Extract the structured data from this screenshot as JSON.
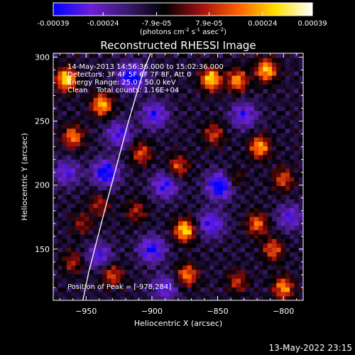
{
  "chart_data": {
    "type": "heatmap",
    "title": "Reconstructed RHESSI Image",
    "xlabel": "Heliocentric X (arcsec)",
    "ylabel": "Heliocentric Y (arcsec)",
    "xlim": [
      -975,
      -785
    ],
    "ylim": [
      110,
      303
    ],
    "xticks": [
      -950,
      -900,
      -850,
      -800
    ],
    "yticks": [
      150,
      200,
      250,
      300
    ],
    "colorbar": {
      "label_html": "(photons cm<tspan baseline-shift=\"super\" font-size=\"7\">-2</tspan> s<tspan baseline-shift=\"super\" font-size=\"7\">-1</tspan> asec<tspan baseline-shift=\"super\" font-size=\"7\">-2</tspan>)",
      "range": [
        -0.00039,
        0.00039
      ],
      "ticks": [
        -0.00039,
        -0.00024,
        -7.9e-05,
        7.9e-05,
        0.00024,
        0.00039
      ],
      "tick_labels": [
        "-0.00039",
        "-0.00024",
        "-7.9e-05",
        "7.9e-05",
        "0.00024",
        "0.00039"
      ],
      "colormap_stops": [
        "#0000ff",
        "#6b1fd6",
        "#3a1a70",
        "#000000",
        "#a01010",
        "#ff6000",
        "#ffe000",
        "#ffffff"
      ]
    },
    "annotations": [
      "14-May-2013 14:56:36.000 to 15:02:36.000",
      "Detectors: 3F 4F 5F 6F 7F 8F, Att 0",
      "Energy Range: 25.0 - 50.0 keV",
      "Clean    Total counts: 1.16E+04"
    ],
    "peak_label": "Position of Peak = [-978,284]",
    "limb_curve": {
      "x": [
        -952.5,
        -948,
        -942,
        -936,
        -930,
        -924,
        -918,
        -912,
        -906,
        -901
      ],
      "y": [
        110,
        132,
        156,
        180,
        203,
        226,
        249,
        270,
        290,
        303
      ]
    },
    "bright_regions": [
      {
        "x": -965,
        "y": 283,
        "strength": 1.0
      },
      {
        "x": -938,
        "y": 263,
        "strength": 0.85
      },
      {
        "x": -960,
        "y": 238,
        "strength": 0.7
      },
      {
        "x": -940,
        "y": 185,
        "strength": 0.4
      },
      {
        "x": -953,
        "y": 170,
        "strength": 0.35
      },
      {
        "x": -960,
        "y": 140,
        "strength": 0.4
      },
      {
        "x": -930,
        "y": 130,
        "strength": 0.55
      },
      {
        "x": -908,
        "y": 225,
        "strength": 0.55
      },
      {
        "x": -912,
        "y": 180,
        "strength": 0.4
      },
      {
        "x": -875,
        "y": 165,
        "strength": 0.95
      },
      {
        "x": -873,
        "y": 130,
        "strength": 0.7
      },
      {
        "x": -880,
        "y": 215,
        "strength": 0.55
      },
      {
        "x": -855,
        "y": 283,
        "strength": 0.95
      },
      {
        "x": -835,
        "y": 282,
        "strength": 0.75
      },
      {
        "x": -853,
        "y": 240,
        "strength": 0.5
      },
      {
        "x": -813,
        "y": 290,
        "strength": 0.9
      },
      {
        "x": -818,
        "y": 230,
        "strength": 0.8
      },
      {
        "x": -800,
        "y": 205,
        "strength": 0.55
      },
      {
        "x": -820,
        "y": 170,
        "strength": 0.65
      },
      {
        "x": -808,
        "y": 150,
        "strength": 0.6
      },
      {
        "x": -800,
        "y": 120,
        "strength": 0.75
      },
      {
        "x": -835,
        "y": 125,
        "strength": 0.45
      },
      {
        "x": -838,
        "y": 205,
        "strength": 0.35
      }
    ],
    "dark_regions": [
      {
        "x": -915,
        "y": 285,
        "strength": 0.75
      },
      {
        "x": -898,
        "y": 255,
        "strength": 0.55
      },
      {
        "x": -925,
        "y": 240,
        "strength": 0.5
      },
      {
        "x": -935,
        "y": 210,
        "strength": 0.7
      },
      {
        "x": -890,
        "y": 200,
        "strength": 0.55
      },
      {
        "x": -848,
        "y": 200,
        "strength": 0.8
      },
      {
        "x": -855,
        "y": 170,
        "strength": 0.55
      },
      {
        "x": -900,
        "y": 150,
        "strength": 0.6
      },
      {
        "x": -940,
        "y": 145,
        "strength": 0.45
      },
      {
        "x": -965,
        "y": 210,
        "strength": 0.45
      },
      {
        "x": -830,
        "y": 255,
        "strength": 0.5
      },
      {
        "x": -795,
        "y": 175,
        "strength": 0.45
      },
      {
        "x": -890,
        "y": 120,
        "strength": 0.45
      }
    ]
  },
  "footer": {
    "timestamp": "13-May-2022 23:15"
  }
}
